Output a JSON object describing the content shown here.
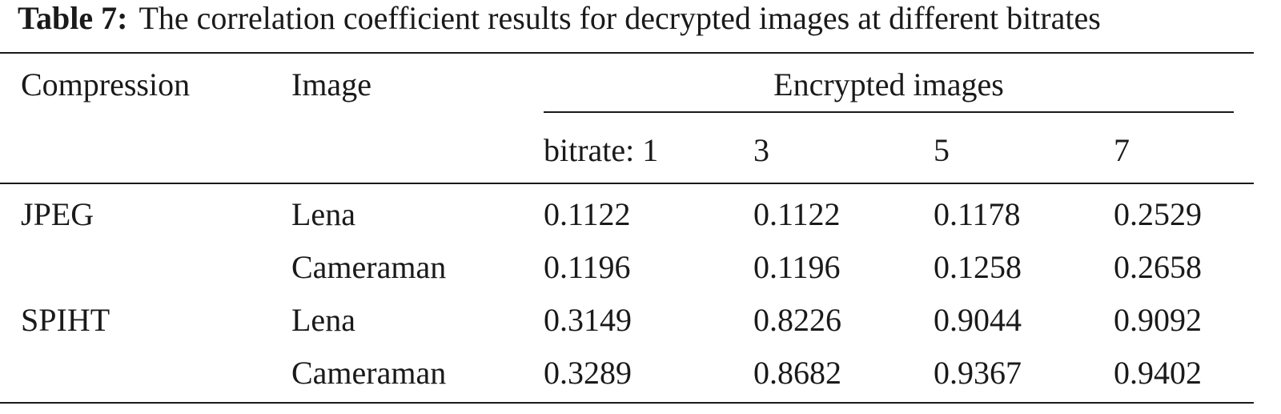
{
  "caption": {
    "label": "Table 7:",
    "text": "The correlation coefficient results for decrypted images at different bitrates"
  },
  "header": {
    "compression": "Compression",
    "image": "Image",
    "group": "Encrypted images",
    "bitrates": [
      "bitrate: 1",
      "3",
      "5",
      "7"
    ]
  },
  "rows": [
    {
      "compression": "JPEG",
      "image": "Lena",
      "values": [
        "0.1122",
        "0.1122",
        "0.1178",
        "0.2529"
      ]
    },
    {
      "compression": "",
      "image": "Cameraman",
      "values": [
        "0.1196",
        "0.1196",
        "0.1258",
        "0.2658"
      ]
    },
    {
      "compression": "SPIHT",
      "image": "Lena",
      "values": [
        "0.3149",
        "0.8226",
        "0.9044",
        "0.9092"
      ]
    },
    {
      "compression": "",
      "image": "Cameraman",
      "values": [
        "0.3289",
        "0.8682",
        "0.9367",
        "0.9402"
      ]
    }
  ]
}
